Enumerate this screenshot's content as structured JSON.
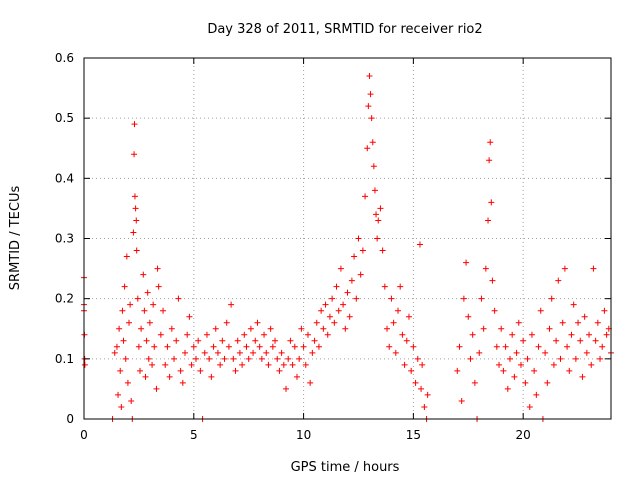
{
  "chart_data": {
    "type": "scatter",
    "title": "Day 328 of 2011, SRMTID for receiver rio2",
    "xlabel": "GPS time / hours",
    "ylabel": "SRMTID / TECUs",
    "xlim": [
      0,
      24
    ],
    "ylim": [
      0,
      0.6
    ],
    "grid": true,
    "marker": "+",
    "series_color": "#ff0000",
    "x_ticks": [
      0,
      5,
      10,
      15,
      20
    ],
    "y_ticks": [
      0,
      0.1,
      0.2,
      0.3,
      0.4,
      0.5,
      0.6
    ],
    "x_tick_labels": [
      "0",
      "5",
      "10",
      "15",
      "20"
    ],
    "y_tick_labels": [
      "0",
      "0.1",
      "0.2",
      "0.3",
      "0.4",
      "0.5",
      "0.6"
    ],
    "data_gaps_hours": [
      [
        0.1,
        1.2
      ],
      [
        15.8,
        16.8
      ]
    ],
    "points": [
      [
        0.0,
        0.235
      ],
      [
        0.0,
        0.19
      ],
      [
        0.0,
        0.18
      ],
      [
        0.02,
        0.14
      ],
      [
        0.03,
        0.1
      ],
      [
        0.04,
        0.09
      ],
      [
        1.3,
        0.0
      ],
      [
        1.4,
        0.11
      ],
      [
        1.5,
        0.12
      ],
      [
        1.55,
        0.04
      ],
      [
        1.6,
        0.15
      ],
      [
        1.65,
        0.08
      ],
      [
        1.7,
        0.02
      ],
      [
        1.75,
        0.18
      ],
      [
        1.8,
        0.13
      ],
      [
        1.85,
        0.22
      ],
      [
        1.9,
        0.1
      ],
      [
        1.95,
        0.27
      ],
      [
        2.0,
        0.06
      ],
      [
        2.05,
        0.16
      ],
      [
        2.1,
        0.19
      ],
      [
        2.15,
        0.03
      ],
      [
        2.2,
        0.0
      ],
      [
        2.25,
        0.31
      ],
      [
        2.28,
        0.44
      ],
      [
        2.3,
        0.49
      ],
      [
        2.32,
        0.37
      ],
      [
        2.35,
        0.35
      ],
      [
        2.38,
        0.33
      ],
      [
        2.4,
        0.28
      ],
      [
        2.45,
        0.2
      ],
      [
        2.5,
        0.12
      ],
      [
        2.55,
        0.08
      ],
      [
        2.6,
        0.15
      ],
      [
        2.7,
        0.24
      ],
      [
        2.75,
        0.18
      ],
      [
        2.8,
        0.07
      ],
      [
        2.85,
        0.13
      ],
      [
        2.9,
        0.21
      ],
      [
        2.95,
        0.1
      ],
      [
        3.0,
        0.16
      ],
      [
        3.1,
        0.09
      ],
      [
        3.15,
        0.19
      ],
      [
        3.2,
        0.12
      ],
      [
        3.3,
        0.05
      ],
      [
        3.35,
        0.25
      ],
      [
        3.4,
        0.22
      ],
      [
        3.5,
        0.14
      ],
      [
        3.6,
        0.18
      ],
      [
        3.7,
        0.09
      ],
      [
        3.8,
        0.12
      ],
      [
        3.9,
        0.07
      ],
      [
        4.0,
        0.15
      ],
      [
        4.1,
        0.1
      ],
      [
        4.2,
        0.13
      ],
      [
        4.3,
        0.2
      ],
      [
        4.4,
        0.08
      ],
      [
        4.5,
        0.06
      ],
      [
        4.6,
        0.11
      ],
      [
        4.7,
        0.14
      ],
      [
        4.8,
        0.17
      ],
      [
        4.9,
        0.09
      ],
      [
        5.0,
        0.12
      ],
      [
        5.1,
        0.1
      ],
      [
        5.2,
        0.13
      ],
      [
        5.3,
        0.08
      ],
      [
        5.4,
        0.0
      ],
      [
        5.5,
        0.11
      ],
      [
        5.6,
        0.14
      ],
      [
        5.7,
        0.1
      ],
      [
        5.8,
        0.07
      ],
      [
        5.9,
        0.12
      ],
      [
        6.0,
        0.15
      ],
      [
        6.1,
        0.11
      ],
      [
        6.2,
        0.09
      ],
      [
        6.3,
        0.13
      ],
      [
        6.4,
        0.1
      ],
      [
        6.5,
        0.16
      ],
      [
        6.6,
        0.12
      ],
      [
        6.7,
        0.19
      ],
      [
        6.8,
        0.1
      ],
      [
        6.9,
        0.08
      ],
      [
        7.0,
        0.13
      ],
      [
        7.1,
        0.11
      ],
      [
        7.2,
        0.09
      ],
      [
        7.3,
        0.14
      ],
      [
        7.4,
        0.12
      ],
      [
        7.5,
        0.1
      ],
      [
        7.6,
        0.15
      ],
      [
        7.7,
        0.11
      ],
      [
        7.8,
        0.13
      ],
      [
        7.9,
        0.16
      ],
      [
        8.0,
        0.12
      ],
      [
        8.1,
        0.1
      ],
      [
        8.2,
        0.14
      ],
      [
        8.3,
        0.11
      ],
      [
        8.4,
        0.09
      ],
      [
        8.5,
        0.15
      ],
      [
        8.6,
        0.12
      ],
      [
        8.7,
        0.13
      ],
      [
        8.8,
        0.1
      ],
      [
        8.9,
        0.08
      ],
      [
        9.0,
        0.11
      ],
      [
        9.1,
        0.09
      ],
      [
        9.2,
        0.05
      ],
      [
        9.3,
        0.1
      ],
      [
        9.4,
        0.13
      ],
      [
        9.5,
        0.09
      ],
      [
        9.6,
        0.12
      ],
      [
        9.7,
        0.07
      ],
      [
        9.8,
        0.1
      ],
      [
        9.9,
        0.15
      ],
      [
        10.0,
        0.12
      ],
      [
        10.1,
        0.09
      ],
      [
        10.2,
        0.14
      ],
      [
        10.3,
        0.06
      ],
      [
        10.4,
        0.11
      ],
      [
        10.5,
        0.13
      ],
      [
        10.6,
        0.16
      ],
      [
        10.7,
        0.12
      ],
      [
        10.8,
        0.18
      ],
      [
        10.9,
        0.15
      ],
      [
        11.0,
        0.19
      ],
      [
        11.1,
        0.14
      ],
      [
        11.2,
        0.17
      ],
      [
        11.3,
        0.2
      ],
      [
        11.4,
        0.16
      ],
      [
        11.5,
        0.22
      ],
      [
        11.6,
        0.18
      ],
      [
        11.7,
        0.25
      ],
      [
        11.8,
        0.19
      ],
      [
        11.9,
        0.15
      ],
      [
        12.0,
        0.21
      ],
      [
        12.1,
        0.17
      ],
      [
        12.2,
        0.23
      ],
      [
        12.3,
        0.27
      ],
      [
        12.4,
        0.2
      ],
      [
        12.5,
        0.3
      ],
      [
        12.6,
        0.24
      ],
      [
        12.7,
        0.28
      ],
      [
        12.8,
        0.37
      ],
      [
        12.9,
        0.45
      ],
      [
        12.95,
        0.52
      ],
      [
        13.0,
        0.57
      ],
      [
        13.05,
        0.54
      ],
      [
        13.1,
        0.5
      ],
      [
        13.15,
        0.46
      ],
      [
        13.2,
        0.42
      ],
      [
        13.25,
        0.38
      ],
      [
        13.3,
        0.34
      ],
      [
        13.35,
        0.3
      ],
      [
        13.4,
        0.33
      ],
      [
        13.5,
        0.35
      ],
      [
        13.6,
        0.28
      ],
      [
        13.7,
        0.22
      ],
      [
        13.8,
        0.15
      ],
      [
        13.9,
        0.12
      ],
      [
        14.0,
        0.2
      ],
      [
        14.1,
        0.16
      ],
      [
        14.2,
        0.11
      ],
      [
        14.3,
        0.18
      ],
      [
        14.4,
        0.22
      ],
      [
        14.5,
        0.14
      ],
      [
        14.6,
        0.09
      ],
      [
        14.7,
        0.13
      ],
      [
        14.8,
        0.17
      ],
      [
        14.9,
        0.08
      ],
      [
        15.0,
        0.12
      ],
      [
        15.1,
        0.06
      ],
      [
        15.2,
        0.1
      ],
      [
        15.3,
        0.29
      ],
      [
        15.35,
        0.05
      ],
      [
        15.4,
        0.09
      ],
      [
        15.5,
        0.02
      ],
      [
        15.6,
        0.0
      ],
      [
        15.65,
        0.04
      ],
      [
        17.0,
        0.08
      ],
      [
        17.1,
        0.12
      ],
      [
        17.2,
        0.03
      ],
      [
        17.3,
        0.2
      ],
      [
        17.4,
        0.26
      ],
      [
        17.5,
        0.17
      ],
      [
        17.6,
        0.1
      ],
      [
        17.7,
        0.14
      ],
      [
        17.8,
        0.06
      ],
      [
        17.9,
        0.0
      ],
      [
        18.0,
        0.11
      ],
      [
        18.1,
        0.2
      ],
      [
        18.2,
        0.15
      ],
      [
        18.3,
        0.25
      ],
      [
        18.4,
        0.33
      ],
      [
        18.45,
        0.43
      ],
      [
        18.5,
        0.46
      ],
      [
        18.55,
        0.36
      ],
      [
        18.6,
        0.23
      ],
      [
        18.7,
        0.18
      ],
      [
        18.8,
        0.12
      ],
      [
        18.9,
        0.09
      ],
      [
        19.0,
        0.15
      ],
      [
        19.1,
        0.08
      ],
      [
        19.2,
        0.12
      ],
      [
        19.3,
        0.05
      ],
      [
        19.4,
        0.1
      ],
      [
        19.5,
        0.14
      ],
      [
        19.6,
        0.07
      ],
      [
        19.7,
        0.11
      ],
      [
        19.8,
        0.16
      ],
      [
        19.9,
        0.09
      ],
      [
        20.0,
        0.13
      ],
      [
        20.1,
        0.06
      ],
      [
        20.2,
        0.1
      ],
      [
        20.3,
        0.02
      ],
      [
        20.4,
        0.14
      ],
      [
        20.5,
        0.08
      ],
      [
        20.6,
        0.04
      ],
      [
        20.7,
        0.12
      ],
      [
        20.8,
        0.18
      ],
      [
        20.9,
        0.0
      ],
      [
        21.0,
        0.11
      ],
      [
        21.1,
        0.06
      ],
      [
        21.2,
        0.15
      ],
      [
        21.3,
        0.2
      ],
      [
        21.4,
        0.09
      ],
      [
        21.5,
        0.13
      ],
      [
        21.6,
        0.23
      ],
      [
        21.7,
        0.1
      ],
      [
        21.8,
        0.16
      ],
      [
        21.9,
        0.25
      ],
      [
        22.0,
        0.12
      ],
      [
        22.1,
        0.08
      ],
      [
        22.2,
        0.14
      ],
      [
        22.3,
        0.19
      ],
      [
        22.4,
        0.1
      ],
      [
        22.5,
        0.16
      ],
      [
        22.6,
        0.13
      ],
      [
        22.7,
        0.07
      ],
      [
        22.8,
        0.17
      ],
      [
        22.9,
        0.11
      ],
      [
        23.0,
        0.14
      ],
      [
        23.1,
        0.09
      ],
      [
        23.2,
        0.25
      ],
      [
        23.3,
        0.13
      ],
      [
        23.4,
        0.16
      ],
      [
        23.5,
        0.1
      ],
      [
        23.6,
        0.12
      ],
      [
        23.7,
        0.18
      ],
      [
        23.8,
        0.14
      ],
      [
        23.9,
        0.15
      ],
      [
        24.0,
        0.11
      ]
    ]
  }
}
